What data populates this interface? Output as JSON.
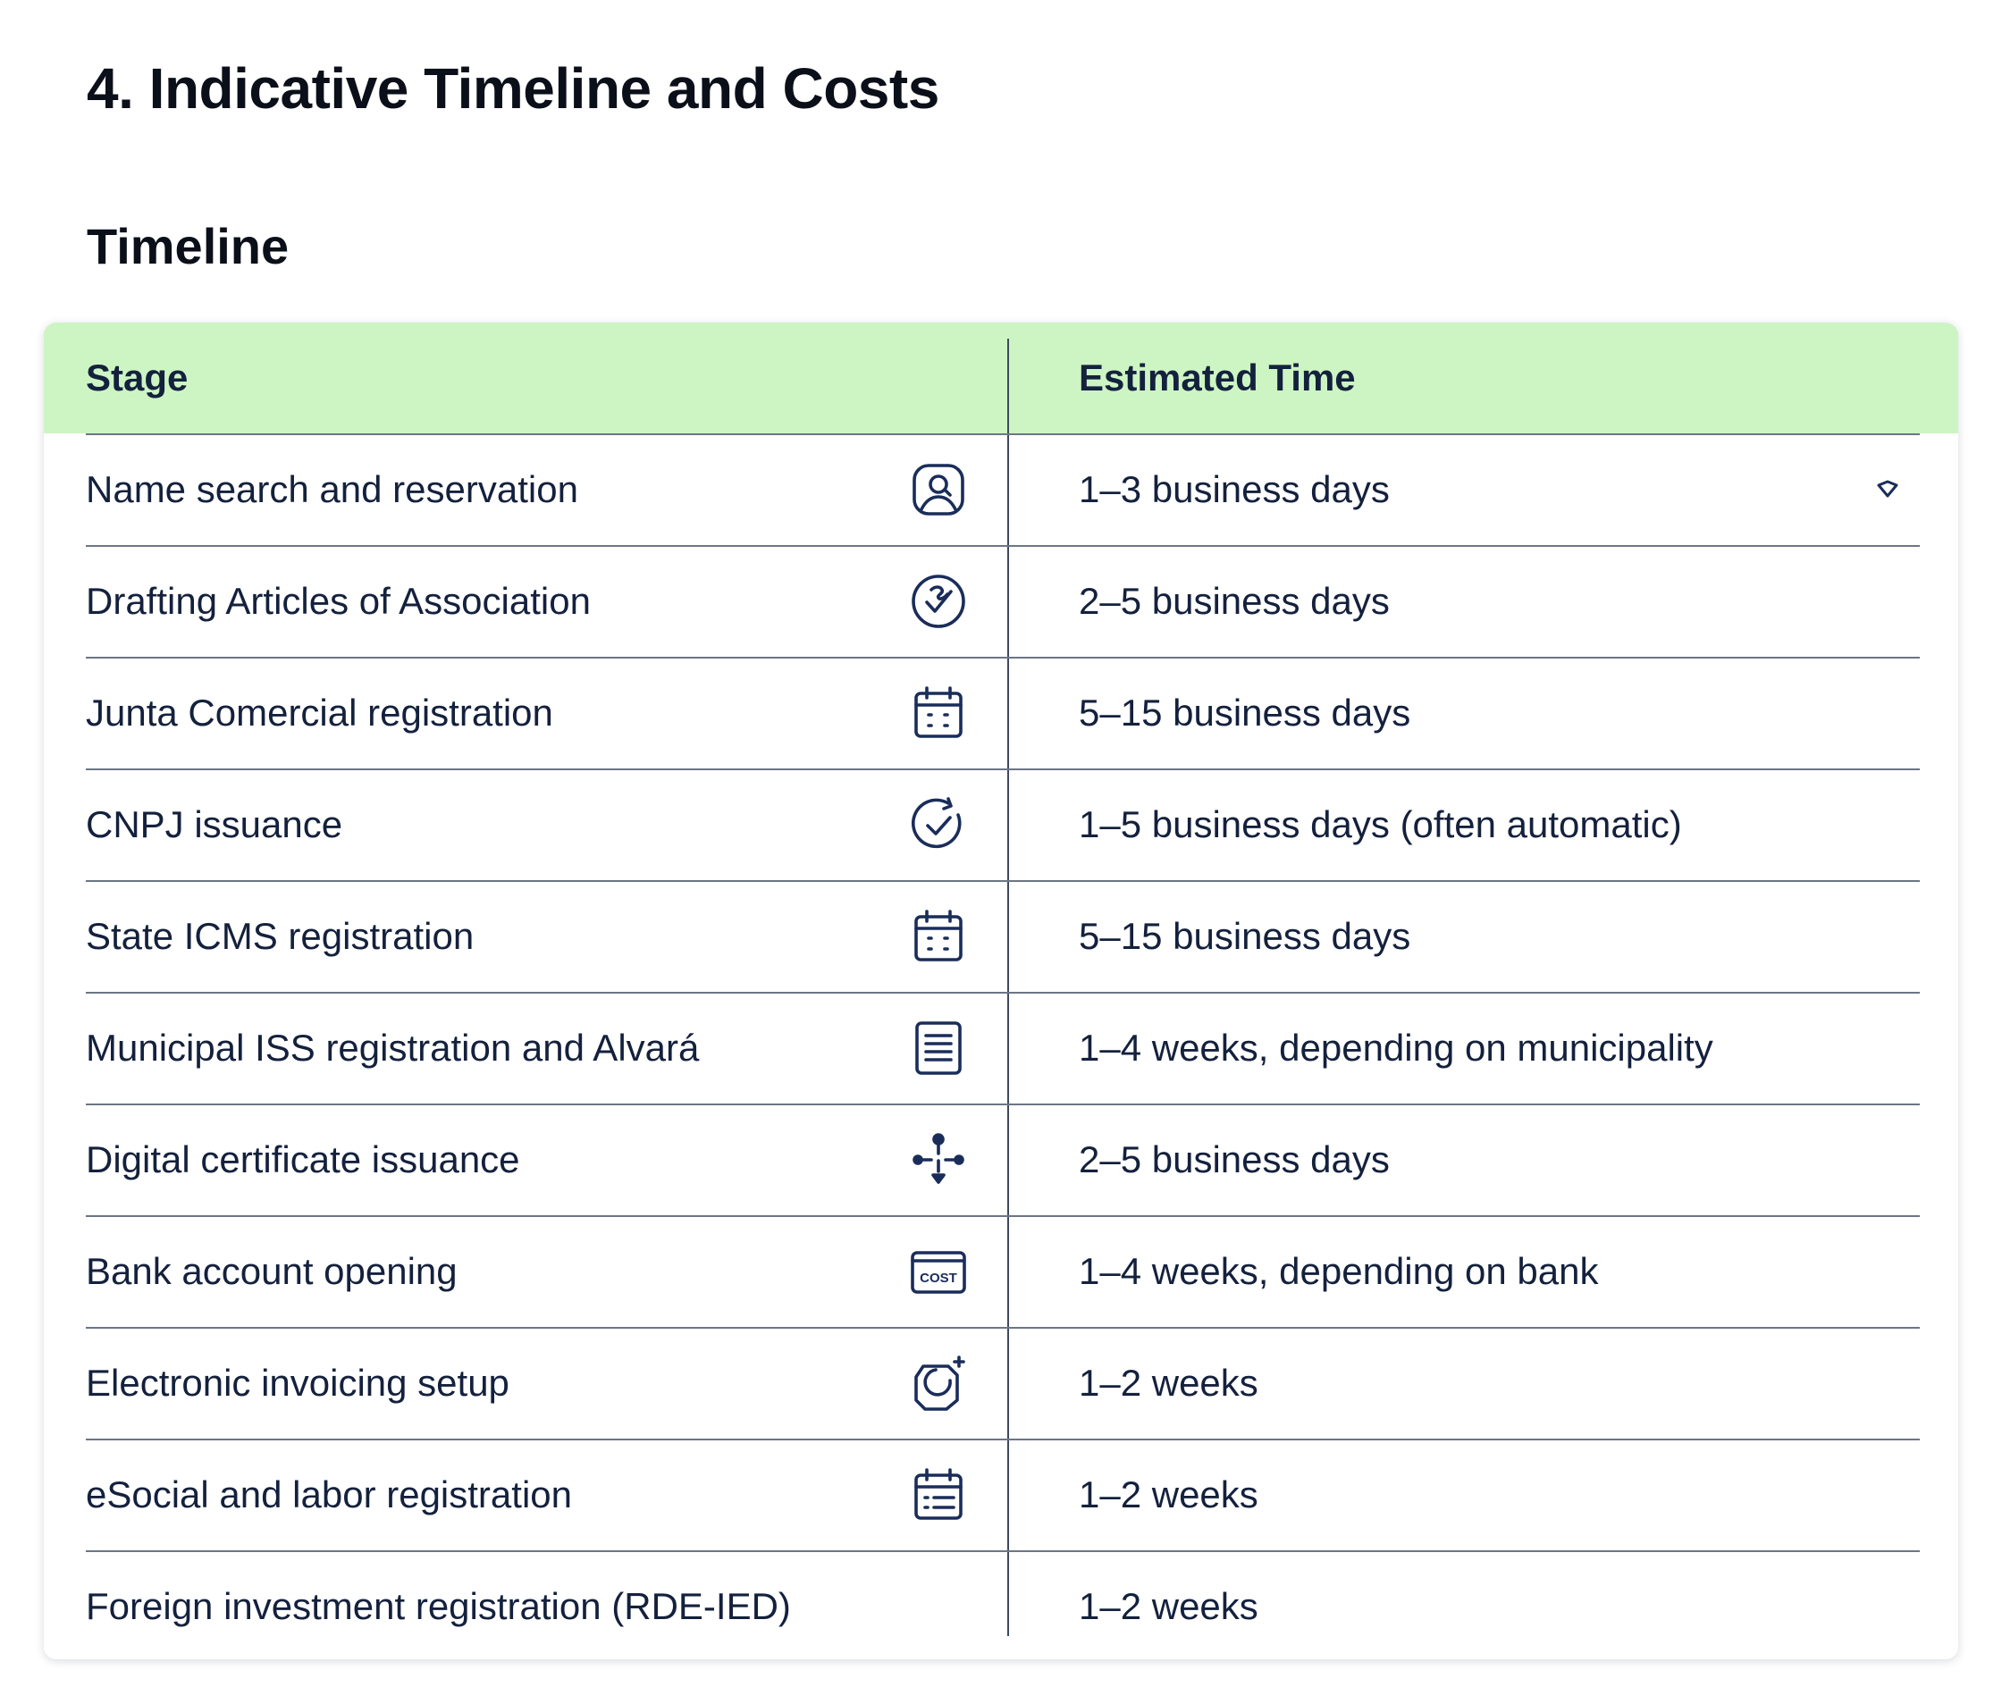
{
  "page": {
    "heading": "4. Indicative Timeline and Costs",
    "section_heading": "Timeline"
  },
  "table": {
    "columns": [
      "Stage",
      "Estimated Time"
    ],
    "rows": [
      {
        "stage": "Name search and reservation",
        "time": "1–3 business days",
        "icon": "user-search-icon"
      },
      {
        "stage": "Drafting Articles of Association",
        "time": "2–5 business days",
        "icon": "signed-check-icon"
      },
      {
        "stage": "Junta Comercial registration",
        "time": "5–15 business days",
        "icon": "calendar-icon"
      },
      {
        "stage": "CNPJ issuance",
        "time": "1–5 business days (often automatic)",
        "icon": "refresh-check-icon"
      },
      {
        "stage": "State ICMS registration",
        "time": "5–15 business days",
        "icon": "calendar-icon"
      },
      {
        "stage": "Municipal ISS registration and Alvará",
        "time": "1–4 weeks, depending on municipality",
        "icon": "document-icon"
      },
      {
        "stage": "Digital certificate issuance",
        "time": "2–5 business days",
        "icon": "network-nodes-icon"
      },
      {
        "stage": "Bank account opening",
        "time": "1–4 weeks, depending on bank",
        "icon": "cost-card-icon",
        "icon_text": "COST"
      },
      {
        "stage": "Electronic invoicing setup",
        "time": "1–2 weeks",
        "icon": "sparkle-rotate-icon"
      },
      {
        "stage": "eSocial and labor registration",
        "time": "1–2 weeks",
        "icon": "calendar-list-icon"
      },
      {
        "stage": "Foreign investment registration (RDE-IED)",
        "time": "1–2 weeks",
        "icon": ""
      }
    ]
  },
  "colors": {
    "header_bg": "#cdf5c3",
    "text": "#14213d",
    "icon": "#1a2d5a",
    "divider": "#6b7686"
  }
}
